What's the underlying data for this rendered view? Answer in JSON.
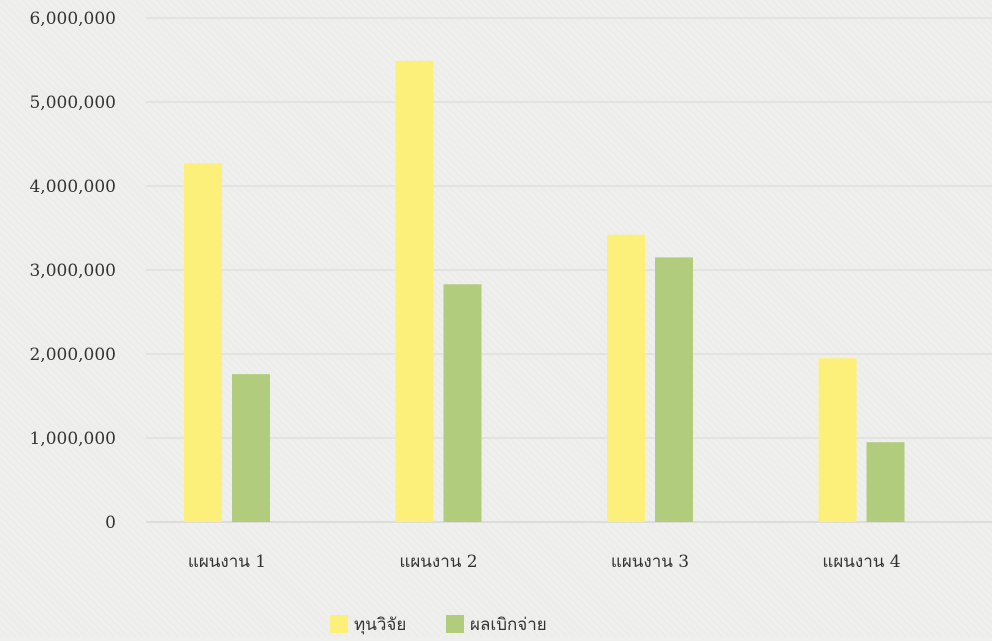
{
  "chart_data": {
    "type": "bar",
    "title": "",
    "xlabel": "",
    "ylabel": "",
    "categories": [
      "แผนงาน 1",
      "แผนงาน 2",
      "แผนงาน 3",
      "แผนงาน 4"
    ],
    "series": [
      {
        "name": "ทุนวิจัย",
        "values": [
          4270000,
          5490000,
          3420000,
          1950000
        ],
        "color": "#fdf07a"
      },
      {
        "name": "ผลเบิกจ่าย",
        "values": [
          1760000,
          2830000,
          3150000,
          950000
        ],
        "color": "#b0cc7c"
      }
    ],
    "ylim": [
      0,
      6000000
    ],
    "yticks": [
      0,
      1000000,
      2000000,
      3000000,
      4000000,
      5000000,
      6000000
    ],
    "ytick_labels": [
      "0",
      "1,000,000",
      "2,000,000",
      "3,000,000",
      "4,000,000",
      "5,000,000",
      "6,000,000"
    ],
    "grid": true,
    "legend_position": "bottom-center"
  }
}
